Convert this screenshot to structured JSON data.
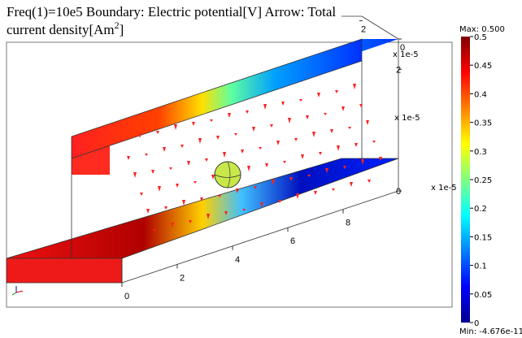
{
  "chart_data": {
    "type": "surface3d",
    "title": "Freq(1)=10e5 Boundary: Electric potential[V]  Arrow: Total current density[Am",
    "title_superscript": "2",
    "title_end": "]",
    "colorbar": {
      "max_label": "Max: 0.500",
      "min_label": "Min: -4.676e-11",
      "lim": [
        0,
        0.5
      ],
      "ticks": [
        0,
        0.05,
        0.1,
        0.15,
        0.2,
        0.25,
        0.3,
        0.35,
        0.4,
        0.45,
        0.5
      ]
    },
    "xticks": [
      0,
      2,
      4,
      6,
      8
    ],
    "yticks": [
      0,
      2
    ],
    "zticks": [
      0,
      2
    ],
    "axis_scale_labels": [
      "x 1e-5",
      "x 1e-5",
      "x 1e-5"
    ]
  }
}
